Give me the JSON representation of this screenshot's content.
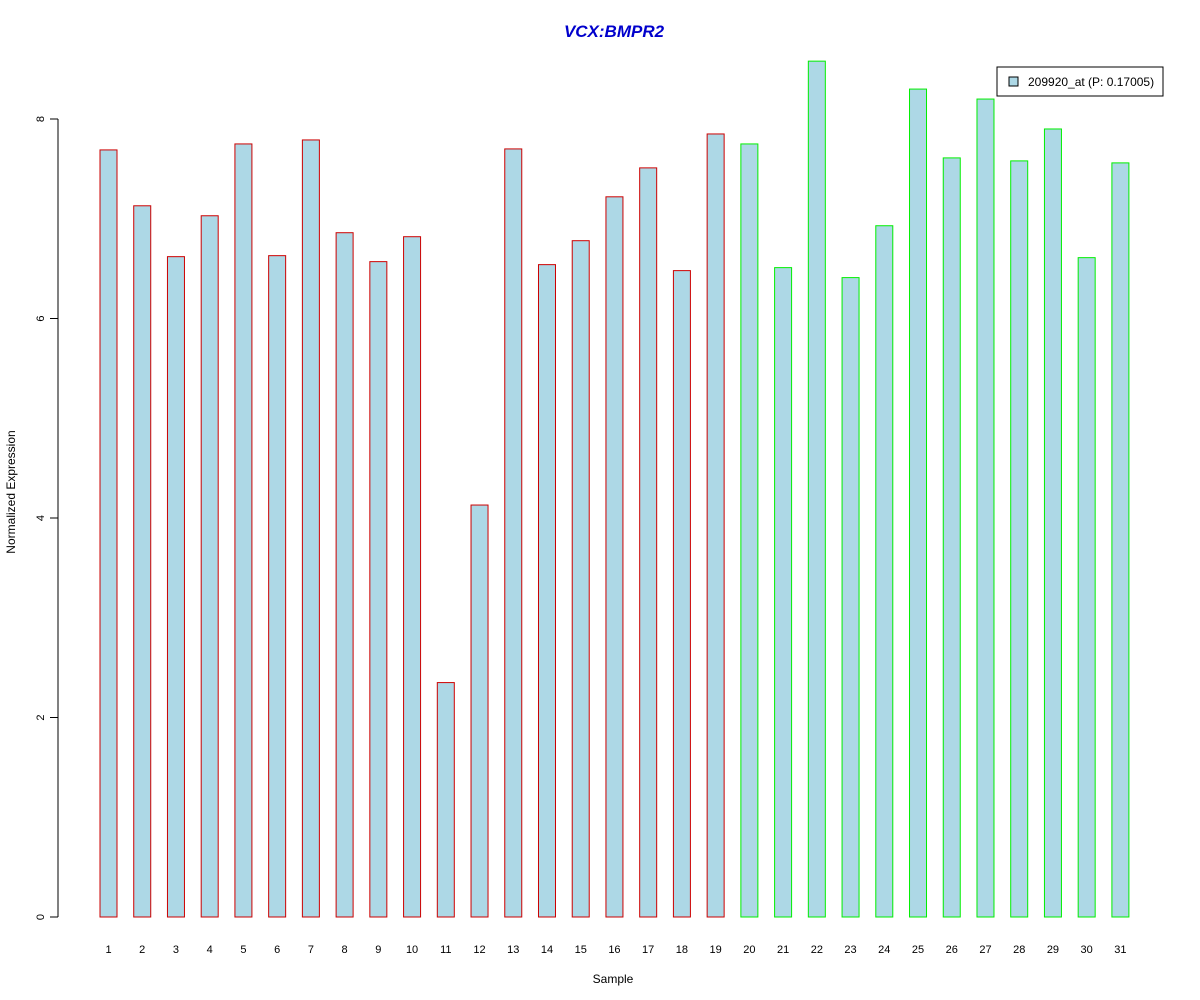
{
  "chart_data": {
    "type": "bar",
    "title": "VCX:BMPR2",
    "xlabel": "Sample",
    "ylabel": "Normalized Expression",
    "ylim": [
      0,
      8.6
    ],
    "yticks": [
      0,
      2,
      4,
      6,
      8
    ],
    "categories": [
      "1",
      "2",
      "3",
      "4",
      "5",
      "6",
      "7",
      "8",
      "9",
      "10",
      "11",
      "12",
      "13",
      "14",
      "15",
      "16",
      "17",
      "18",
      "19",
      "20",
      "21",
      "22",
      "23",
      "24",
      "25",
      "26",
      "27",
      "28",
      "29",
      "30",
      "31"
    ],
    "series": [
      {
        "name": "209920_at (P: 0.17005)",
        "values": [
          7.69,
          7.13,
          6.62,
          7.03,
          7.75,
          6.63,
          7.79,
          6.86,
          6.57,
          6.82,
          2.35,
          4.13,
          7.7,
          6.54,
          6.78,
          7.22,
          7.51,
          6.48,
          7.85,
          7.75,
          6.51,
          8.58,
          6.41,
          6.93,
          8.3,
          7.61,
          8.2,
          7.58,
          7.9,
          6.61,
          7.56
        ]
      }
    ],
    "groups": [
      {
        "samples": [
          1,
          19
        ],
        "border_color": "#cc0000"
      },
      {
        "samples": [
          20,
          31
        ],
        "border_color": "#00ee00"
      }
    ],
    "fill_color": "#add8e6",
    "grid": false,
    "legend_position": "top-right"
  }
}
